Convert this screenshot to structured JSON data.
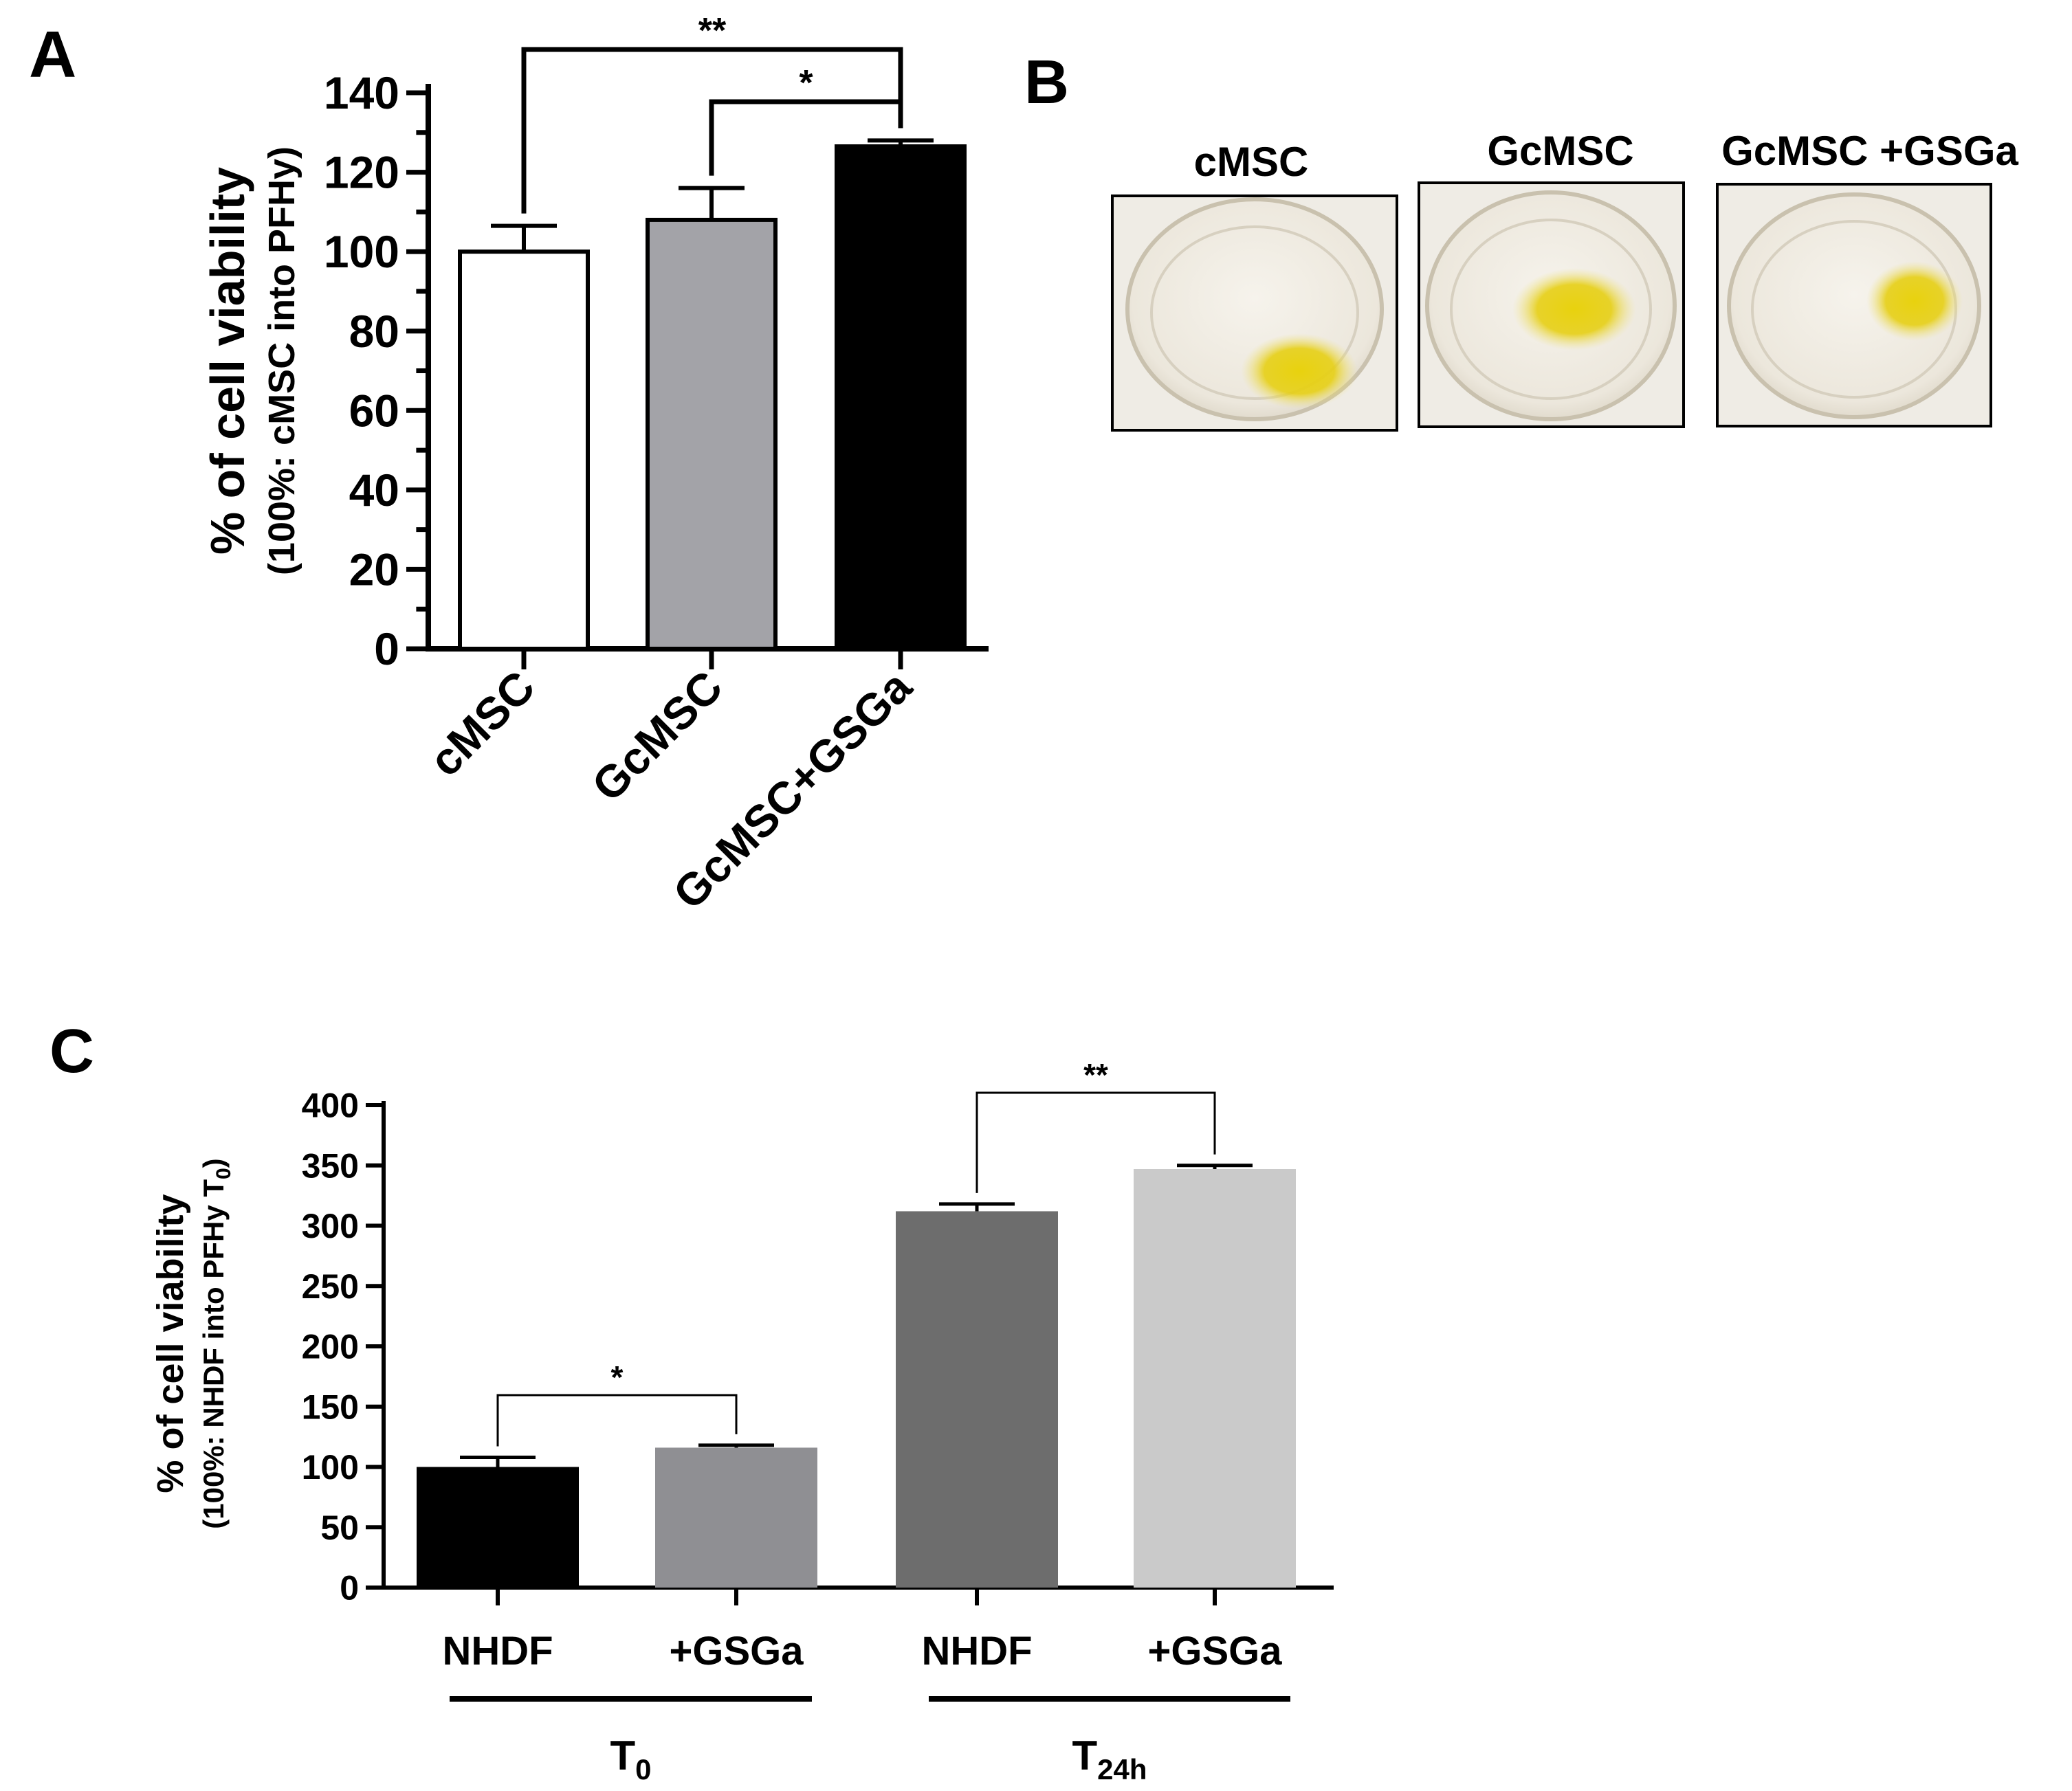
{
  "panels": {
    "a": "A",
    "b": "B",
    "c": "C"
  },
  "chart_data": [
    {
      "id": "A",
      "type": "bar",
      "title": "",
      "xlabel": "",
      "ylabel": "% of cell viability",
      "ylabel_sub": "(100%: cMSC into PFHy)",
      "ylim": [
        0,
        140
      ],
      "ytick_step": 20,
      "yticks": [
        "0",
        "20",
        "40",
        "60",
        "80",
        "100",
        "120",
        "140"
      ],
      "categories": [
        "cMSC",
        "GcMSC",
        "GcMSC+GSGa"
      ],
      "values": [
        100,
        108,
        126.5
      ],
      "errors": [
        6.5,
        8,
        1.5
      ],
      "colors": [
        "#ffffff",
        "#a3a3a8",
        "#000000"
      ],
      "significance": [
        {
          "from": 0,
          "to": 2,
          "label": "**"
        },
        {
          "from": 1,
          "to": 2,
          "label": "*"
        }
      ]
    },
    {
      "id": "C",
      "type": "bar",
      "title": "",
      "xlabel": "",
      "ylabel": "% of cell viability",
      "ylabel_sub_prefix": "(100%: NHDF into PFHy T",
      "ylabel_sub_sub": "0",
      "ylabel_sub_suffix": ")",
      "ylim": [
        0,
        400
      ],
      "ytick_step": 50,
      "yticks": [
        "0",
        "50",
        "100",
        "150",
        "200",
        "250",
        "300",
        "350",
        "400"
      ],
      "categories": [
        "NHDF",
        "+GSGa",
        "NHDF",
        "+GSGa"
      ],
      "values": [
        100,
        116,
        312,
        347
      ],
      "errors": [
        8,
        2,
        6,
        3
      ],
      "colors": [
        "#000000",
        "#8f8f93",
        "#6d6d6d",
        "#cacaca"
      ],
      "groups": [
        {
          "label": "T",
          "sub": "0",
          "members": [
            0,
            1
          ]
        },
        {
          "label": "T",
          "sub": "24h",
          "members": [
            2,
            3
          ]
        }
      ],
      "significance": [
        {
          "from": 0,
          "to": 1,
          "label": "*"
        },
        {
          "from": 2,
          "to": 3,
          "label": "**"
        }
      ]
    }
  ],
  "photos": {
    "labels": [
      "cMSC",
      "GcMSC",
      "GcMSC +GSGa"
    ],
    "spot_color": "#e6cf14",
    "well_background": "#eeeae2"
  }
}
